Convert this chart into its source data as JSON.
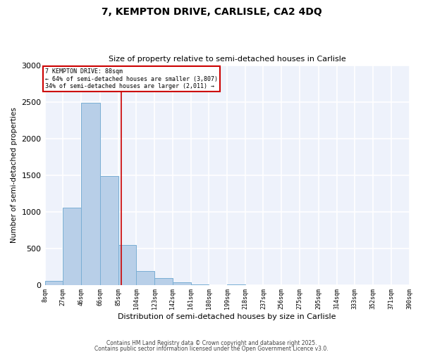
{
  "title": "7, KEMPTON DRIVE, CARLISLE, CA2 4DQ",
  "subtitle": "Size of property relative to semi-detached houses in Carlisle",
  "xlabel": "Distribution of semi-detached houses by size in Carlisle",
  "ylabel": "Number of semi-detached properties",
  "background_color": "#eef2fb",
  "fig_background_color": "#ffffff",
  "bar_color": "#b8cfe8",
  "bar_edge_color": "#7aaed4",
  "grid_color": "#ffffff",
  "bins": [
    8,
    27,
    46,
    66,
    85,
    104,
    123,
    142,
    161,
    180,
    199,
    218,
    237,
    256,
    275,
    295,
    314,
    333,
    352,
    371,
    390
  ],
  "bin_labels": [
    "8sqm",
    "27sqm",
    "46sqm",
    "66sqm",
    "85sqm",
    "104sqm",
    "123sqm",
    "142sqm",
    "161sqm",
    "180sqm",
    "199sqm",
    "218sqm",
    "237sqm",
    "256sqm",
    "275sqm",
    "295sqm",
    "314sqm",
    "333sqm",
    "352sqm",
    "371sqm",
    "390sqm"
  ],
  "counts": [
    50,
    1050,
    2490,
    1490,
    540,
    185,
    90,
    30,
    5,
    0,
    5,
    0,
    0,
    0,
    0,
    0,
    0,
    0,
    0,
    0
  ],
  "property_size": 88,
  "property_label": "7 KEMPTON DRIVE: 88sqm",
  "pct_smaller": 64,
  "n_smaller": 3807,
  "pct_larger": 34,
  "n_larger": 2011,
  "annotation_box_color": "#cc0000",
  "vline_color": "#cc0000",
  "ylim": [
    0,
    3000
  ],
  "yticks": [
    0,
    500,
    1000,
    1500,
    2000,
    2500,
    3000
  ],
  "footnote1": "Contains HM Land Registry data © Crown copyright and database right 2025.",
  "footnote2": "Contains public sector information licensed under the Open Government Licence v3.0."
}
